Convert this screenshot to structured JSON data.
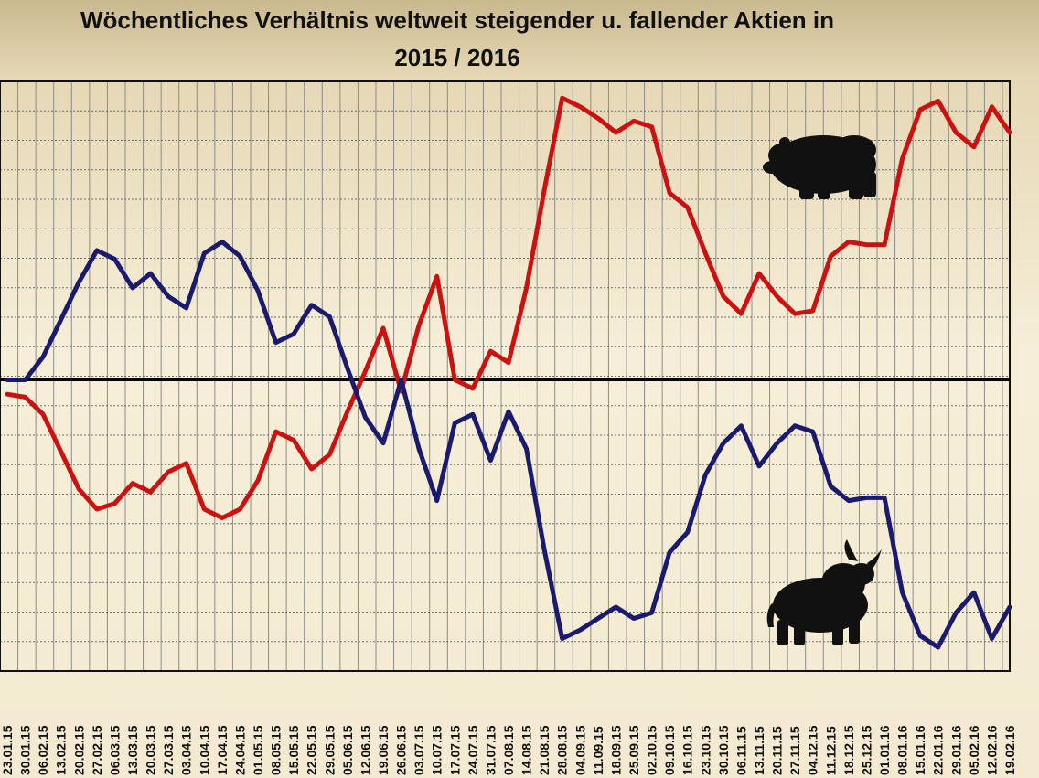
{
  "chart_data": {
    "type": "line",
    "title_line1": "Wöchentliches Verhältnis weltweit steigender u. fallender Aktien in",
    "title_line2": "2015 / 2016",
    "x": [
      "23.01.15",
      "30.01.15",
      "06.02.15",
      "13.02.15",
      "20.02.15",
      "27.02.15",
      "06.03.15",
      "13.03.15",
      "20.03.15",
      "27.03.15",
      "03.04.15",
      "10.04.15",
      "17.04.15",
      "24.04.15",
      "01.05.15",
      "08.05.15",
      "15.05.15",
      "22.05.15",
      "29.05.15",
      "05.06.15",
      "12.06.15",
      "19.06.15",
      "26.06.15",
      "03.07.15",
      "10.07.15",
      "17.07.15",
      "24.07.15",
      "31.07.15",
      "07.08.15",
      "14.08.15",
      "21.08.15",
      "28.08.15",
      "04.09.15",
      "11.09.15",
      "18.09.15",
      "25.09.15",
      "02.10.15",
      "09.10.15",
      "16.10.15",
      "23.10.15",
      "30.10.15",
      "06.11.15",
      "13.11.15",
      "20.11.15",
      "27.11.15",
      "04.12.15",
      "11.12.15",
      "18.12.15",
      "25.12.15",
      "01.01.16",
      "08.01.16",
      "15.01.16",
      "22.01.16",
      "29.01.16",
      "05.02.16",
      "12.02.16",
      "19.02.16"
    ],
    "xlabels": [
      "23.01.15",
      "30.01.15",
      "06.02.15",
      "13.02.15",
      "20.02.15",
      "27.02.15",
      "06.03.15",
      "13.03.15",
      "20.03.15",
      "27.03.15",
      "03.04.15",
      "10.04.15",
      "17.04.15",
      "24.04.15",
      "01.05.15",
      "08.05.15",
      "15.05.15",
      "22.05.15",
      "29.05.15",
      "05.06.15",
      "12.06.15",
      "19.06.15",
      "26.06.15",
      "03.07.15",
      "10.07.15",
      "17.07.15",
      "24.07.15",
      "31.07.15",
      "07.08.15",
      "14.08.15",
      "21.08.15",
      "28.08.15",
      "04.09.15",
      "11.09.15",
      "18.09.15",
      "25.09.15",
      "02.10.15",
      "09.10.15",
      "16.10.15",
      "23.10.15",
      "30.10.15",
      "06.11.15",
      "13.11.15",
      "20.11.15",
      "27.11.15",
      "04.12.15",
      "11.12.15",
      "18.12.15",
      "25.12.15",
      "01.01.16",
      "08.01.16",
      "15.01.16",
      "22.01.16",
      "29.01.16",
      "05.02.16",
      "12.02.16",
      "19.02.16"
    ],
    "ylim": [
      -10,
      10
    ],
    "grid": true,
    "series": [
      {
        "color": "#cc1111",
        "values": [
          -0.5,
          -0.6,
          -1.2,
          -2.5,
          -3.8,
          -4.5,
          -4.3,
          -3.6,
          -3.9,
          -3.2,
          -2.9,
          -4.5,
          -4.8,
          -4.5,
          -3.5,
          -1.8,
          -2.1,
          -3.1,
          -2.6,
          -1.1,
          0.3,
          1.8,
          -0.4,
          1.9,
          3.6,
          0,
          -0.3,
          1.0,
          0.6,
          3.2,
          6.6,
          9.8,
          9.5,
          9.1,
          8.6,
          9.0,
          8.8,
          6.5,
          6.0,
          4.4,
          2.9,
          2.3,
          3.7,
          2.9,
          2.3,
          2.4,
          4.3,
          4.8,
          4.7,
          4.7,
          7.7,
          9.4,
          9.7,
          8.6,
          8.1,
          9.5,
          8.6
        ]
      },
      {
        "color": "#1b1b6e",
        "values": [
          0,
          0,
          0.8,
          2.1,
          3.4,
          4.5,
          4.2,
          3.2,
          3.7,
          2.9,
          2.5,
          4.4,
          4.8,
          4.3,
          3.1,
          1.3,
          1.6,
          2.6,
          2.2,
          0.4,
          -1.3,
          -2.2,
          0,
          -2.4,
          -4.2,
          -1.5,
          -1.2,
          -2.8,
          -1.1,
          -2.4,
          -5.9,
          -9.0,
          -8.7,
          -8.3,
          -7.9,
          -8.3,
          -8.1,
          -6.0,
          -5.3,
          -3.3,
          -2.2,
          -1.6,
          -3.0,
          -2.2,
          -1.6,
          -1.8,
          -3.7,
          -4.2,
          -4.1,
          -4.1,
          -7.4,
          -8.9,
          -9.3,
          -8.1,
          -7.4,
          -9.0,
          -7.9
        ]
      }
    ]
  }
}
